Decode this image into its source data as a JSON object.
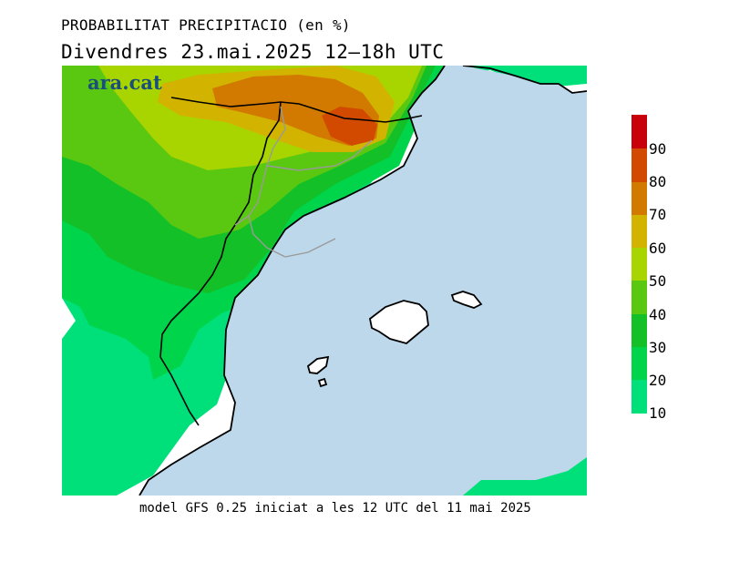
{
  "header": {
    "title": "PROBABILITAT PRECIPITACIO (en %)",
    "subtitle": "Divendres  23.mai.2025 12–18h UTC"
  },
  "logo_text": "ara.cat",
  "footer": "model GFS 0.25 iniciat a les 12 UTC del 11 mai 2025",
  "legend": {
    "labels": [
      "90",
      "80",
      "70",
      "60",
      "50",
      "40",
      "30",
      "20",
      "10"
    ],
    "colors": [
      "#c8000a",
      "#d24a00",
      "#d27a00",
      "#d2b400",
      "#a8d400",
      "#5ac810",
      "#14c028",
      "#00d44a",
      "#00e07a"
    ]
  },
  "map_colors": {
    "sea": "#bcd8ea",
    "land_bg": "#ffffff",
    "coast": "#000000",
    "province": "#9a9a9a"
  }
}
